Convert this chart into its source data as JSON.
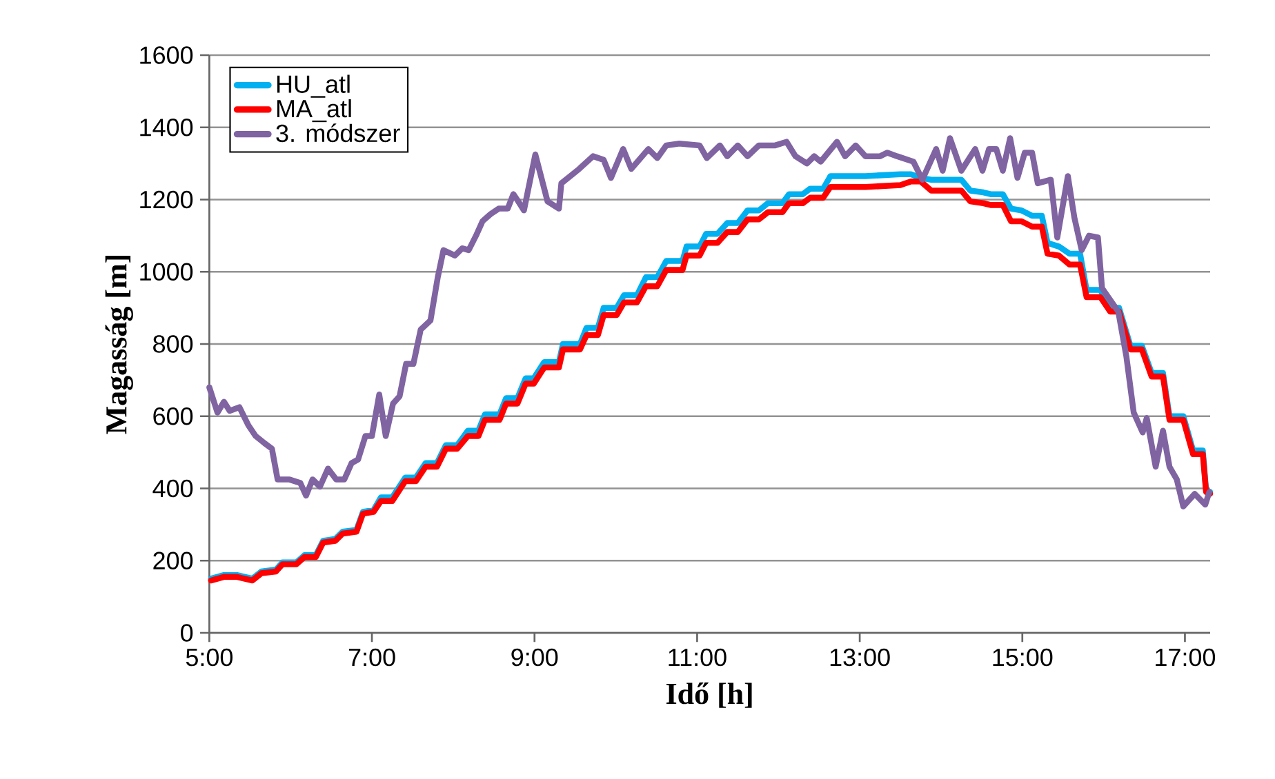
{
  "chart_data": {
    "type": "line",
    "xlabel": "Idő [h]",
    "ylabel": "Magasság [m]",
    "xlim": [
      5,
      17.31
    ],
    "ylim": [
      0,
      1600
    ],
    "xticks": [
      {
        "value": 5,
        "label": "5:00"
      },
      {
        "value": 7,
        "label": "7:00"
      },
      {
        "value": 9,
        "label": "9:00"
      },
      {
        "value": 11,
        "label": "11:00"
      },
      {
        "value": 13,
        "label": "13:00"
      },
      {
        "value": 15,
        "label": "15:00"
      },
      {
        "value": 17,
        "label": "17:00"
      }
    ],
    "yticks": [
      0,
      200,
      400,
      600,
      800,
      1000,
      1200,
      1400,
      1600
    ],
    "grid": "y",
    "legend": "top left",
    "series": [
      {
        "name": "HU_atl",
        "color": "#00b0f0",
        "x": [
          5.02,
          5.18,
          5.34,
          5.53,
          5.64,
          5.82,
          5.9,
          6.07,
          6.17,
          6.31,
          6.4,
          6.55,
          6.64,
          6.81,
          6.89,
          7.02,
          7.11,
          7.25,
          7.41,
          7.54,
          7.66,
          7.8,
          7.91,
          8.05,
          8.18,
          8.31,
          8.39,
          8.57,
          8.65,
          8.79,
          8.89,
          8.99,
          9.12,
          9.3,
          9.35,
          9.56,
          9.64,
          9.78,
          9.85,
          10.01,
          10.1,
          10.26,
          10.37,
          10.51,
          10.62,
          10.82,
          10.87,
          11.03,
          11.11,
          11.25,
          11.37,
          11.5,
          11.62,
          11.76,
          11.87,
          12.05,
          12.13,
          12.3,
          12.39,
          12.55,
          12.64,
          13.07,
          13.5,
          13.63,
          13.75,
          13.88,
          14.25,
          14.36,
          14.52,
          14.61,
          14.76,
          14.86,
          14.99,
          15.12,
          15.24,
          15.31,
          15.45,
          15.58,
          15.71,
          15.79,
          15.96,
          16.08,
          16.19,
          16.33,
          16.47,
          16.59,
          16.73,
          16.81,
          16.98,
          17.1,
          17.22,
          17.26,
          17.31
        ],
        "values": [
          150,
          160,
          160,
          150,
          170,
          175,
          195,
          195,
          215,
          215,
          255,
          260,
          280,
          285,
          335,
          340,
          375,
          375,
          430,
          430,
          470,
          470,
          520,
          520,
          560,
          560,
          605,
          605,
          650,
          650,
          705,
          705,
          750,
          750,
          800,
          800,
          845,
          845,
          900,
          900,
          935,
          935,
          985,
          985,
          1030,
          1030,
          1070,
          1070,
          1105,
          1105,
          1135,
          1135,
          1170,
          1170,
          1190,
          1190,
          1215,
          1215,
          1230,
          1230,
          1265,
          1265,
          1270,
          1270,
          1260,
          1255,
          1255,
          1225,
          1220,
          1215,
          1215,
          1175,
          1170,
          1155,
          1155,
          1080,
          1070,
          1050,
          1050,
          950,
          950,
          900,
          900,
          795,
          795,
          720,
          720,
          600,
          600,
          505,
          505,
          395,
          390
        ]
      },
      {
        "name": "MA_atl",
        "color": "#ff0000",
        "x": [
          5.02,
          5.18,
          5.34,
          5.53,
          5.64,
          5.82,
          5.9,
          6.07,
          6.17,
          6.31,
          6.4,
          6.55,
          6.64,
          6.81,
          6.89,
          7.02,
          7.11,
          7.25,
          7.41,
          7.54,
          7.66,
          7.8,
          7.91,
          8.05,
          8.18,
          8.31,
          8.39,
          8.57,
          8.65,
          8.79,
          8.89,
          8.99,
          9.12,
          9.3,
          9.35,
          9.56,
          9.64,
          9.78,
          9.85,
          10.01,
          10.1,
          10.26,
          10.37,
          10.51,
          10.62,
          10.82,
          10.87,
          11.03,
          11.11,
          11.25,
          11.37,
          11.5,
          11.62,
          11.76,
          11.87,
          12.05,
          12.13,
          12.3,
          12.39,
          12.55,
          12.64,
          13.07,
          13.5,
          13.63,
          13.75,
          13.88,
          14.25,
          14.36,
          14.52,
          14.61,
          14.76,
          14.86,
          14.99,
          15.12,
          15.24,
          15.31,
          15.45,
          15.58,
          15.71,
          15.79,
          15.96,
          16.08,
          16.19,
          16.33,
          16.47,
          16.59,
          16.73,
          16.81,
          16.98,
          17.1,
          17.22,
          17.26,
          17.31
        ],
        "values": [
          145,
          155,
          155,
          145,
          165,
          170,
          190,
          190,
          210,
          210,
          250,
          255,
          275,
          280,
          330,
          335,
          365,
          365,
          420,
          420,
          460,
          460,
          510,
          510,
          545,
          545,
          590,
          590,
          635,
          635,
          690,
          690,
          735,
          735,
          785,
          785,
          825,
          825,
          880,
          880,
          915,
          915,
          960,
          960,
          1005,
          1005,
          1045,
          1045,
          1080,
          1080,
          1110,
          1110,
          1145,
          1145,
          1165,
          1165,
          1190,
          1190,
          1205,
          1205,
          1235,
          1235,
          1240,
          1250,
          1250,
          1225,
          1225,
          1195,
          1190,
          1185,
          1185,
          1140,
          1140,
          1125,
          1125,
          1050,
          1045,
          1020,
          1020,
          930,
          930,
          890,
          890,
          785,
          785,
          710,
          710,
          590,
          590,
          495,
          495,
          390,
          385
        ]
      },
      {
        "name": "3. módszer",
        "color": "#8064a2",
        "x": [
          5.0,
          5.1,
          5.18,
          5.25,
          5.37,
          5.48,
          5.57,
          5.68,
          5.77,
          5.84,
          5.98,
          6.12,
          6.19,
          6.27,
          6.36,
          6.46,
          6.56,
          6.66,
          6.75,
          6.83,
          6.92,
          7.0,
          7.09,
          7.17,
          7.26,
          7.34,
          7.42,
          7.51,
          7.6,
          7.72,
          7.81,
          7.88,
          8.02,
          8.11,
          8.19,
          8.28,
          8.36,
          8.46,
          8.56,
          8.67,
          8.74,
          8.8,
          8.87,
          9.01,
          9.16,
          9.3,
          9.33,
          9.55,
          9.72,
          9.85,
          9.94,
          10.09,
          10.19,
          10.4,
          10.51,
          10.62,
          10.78,
          11.03,
          11.12,
          11.28,
          11.37,
          11.5,
          11.62,
          11.76,
          11.96,
          12.1,
          12.21,
          12.35,
          12.44,
          12.52,
          12.72,
          12.82,
          12.95,
          13.07,
          13.25,
          13.34,
          13.46,
          13.66,
          13.77,
          13.94,
          14.02,
          14.11,
          14.25,
          14.42,
          14.51,
          14.59,
          14.68,
          14.76,
          14.85,
          14.94,
          15.03,
          15.12,
          15.19,
          15.35,
          15.43,
          15.56,
          15.64,
          15.73,
          15.82,
          15.93,
          15.98,
          16.18,
          16.28,
          16.37,
          16.48,
          16.53,
          16.64,
          16.73,
          16.81,
          16.9,
          16.98,
          17.12,
          17.25,
          17.3
        ],
        "values": [
          680,
          610,
          640,
          615,
          625,
          575,
          545,
          525,
          510,
          425,
          425,
          415,
          380,
          425,
          405,
          455,
          425,
          425,
          470,
          480,
          545,
          545,
          660,
          545,
          635,
          655,
          745,
          745,
          840,
          865,
          985,
          1060,
          1045,
          1065,
          1060,
          1100,
          1140,
          1160,
          1175,
          1175,
          1215,
          1195,
          1170,
          1325,
          1195,
          1175,
          1245,
          1285,
          1320,
          1310,
          1260,
          1340,
          1285,
          1340,
          1315,
          1350,
          1355,
          1350,
          1315,
          1350,
          1320,
          1350,
          1320,
          1350,
          1350,
          1360,
          1320,
          1300,
          1320,
          1305,
          1360,
          1320,
          1350,
          1320,
          1320,
          1330,
          1320,
          1305,
          1255,
          1340,
          1280,
          1370,
          1280,
          1340,
          1280,
          1340,
          1340,
          1280,
          1370,
          1260,
          1330,
          1330,
          1245,
          1255,
          1095,
          1265,
          1150,
          1060,
          1100,
          1095,
          955,
          890,
          765,
          610,
          555,
          595,
          460,
          560,
          460,
          425,
          350,
          385,
          355,
          390
        ]
      }
    ]
  }
}
